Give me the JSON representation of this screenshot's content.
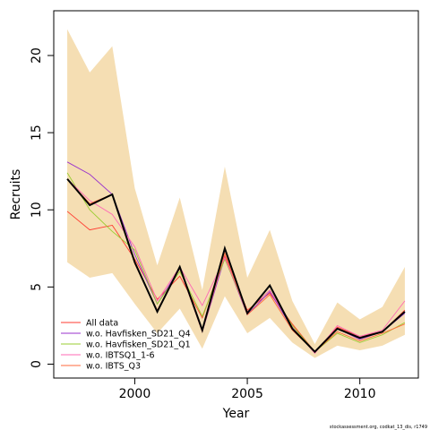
{
  "chart_data": {
    "type": "line",
    "xlabel": "Year",
    "ylabel": "Recruits",
    "xlim": [
      1996.4,
      2012.6
    ],
    "ylim": [
      -0.9,
      22.9
    ],
    "xticks": [
      2000,
      2005,
      2010
    ],
    "yticks": [
      0,
      5,
      10,
      15,
      20
    ],
    "grid": false,
    "legend_position": "bottom-left",
    "x": [
      1997,
      1998,
      1999,
      2000,
      2001,
      2002,
      2003,
      2004,
      2005,
      2006,
      2007,
      2008,
      2009,
      2010,
      2011,
      2012
    ],
    "band": {
      "color": "#F5DEB3",
      "upper": [
        21.7,
        18.9,
        20.6,
        11.4,
        6.4,
        10.8,
        4.8,
        12.8,
        5.6,
        8.7,
        4.1,
        1.3,
        4.0,
        2.9,
        3.7,
        6.3
      ],
      "lower": [
        6.6,
        5.6,
        5.9,
        3.9,
        2.0,
        3.6,
        1.0,
        4.4,
        2.0,
        3.0,
        1.4,
        0.4,
        1.2,
        0.9,
        1.2,
        1.9
      ]
    },
    "base": {
      "color": "#000000",
      "values": [
        12.0,
        10.3,
        11.0,
        6.6,
        3.4,
        6.3,
        2.2,
        7.5,
        3.3,
        5.1,
        2.3,
        0.8,
        2.3,
        1.7,
        2.1,
        3.4
      ]
    },
    "series": [
      {
        "name": "All data",
        "color": "#FF3B30",
        "values": [
          9.9,
          8.7,
          9.0,
          6.8,
          4.2,
          5.7,
          3.0,
          7.0,
          3.5,
          4.6,
          2.6,
          0.8,
          2.4,
          1.8,
          2.1,
          3.5
        ]
      },
      {
        "name": "w.o. Havfisken_SD21_Q4",
        "color": "#9932CC",
        "values": [
          13.1,
          12.3,
          11.0,
          7.1,
          3.9,
          6.2,
          2.1,
          6.9,
          3.2,
          4.7,
          2.3,
          0.8,
          2.3,
          1.6,
          2.1,
          3.3
        ]
      },
      {
        "name": "w.o. Havfisken_SD21_Q1",
        "color": "#9ACD32",
        "values": [
          12.4,
          10.0,
          8.6,
          7.4,
          3.9,
          6.0,
          3.1,
          6.8,
          3.4,
          4.8,
          2.5,
          0.8,
          2.0,
          1.4,
          1.9,
          2.7
        ]
      },
      {
        "name": "w.o. IBTSQ1_1-6",
        "color": "#FF69B4",
        "values": [
          12.0,
          10.6,
          9.7,
          7.6,
          4.1,
          6.3,
          3.8,
          6.9,
          3.4,
          4.8,
          2.4,
          0.7,
          2.5,
          1.8,
          2.2,
          4.1
        ]
      },
      {
        "name": "w.o. IBTS_Q3",
        "color": "#FF6A3D",
        "values": [
          12.0,
          10.4,
          11.0,
          6.5,
          3.5,
          6.2,
          2.1,
          7.2,
          3.2,
          4.5,
          2.2,
          0.8,
          2.1,
          1.5,
          2.0,
          2.6
        ]
      }
    ],
    "footnote": "stockassessment.org, codkat_13_dis, r1749"
  }
}
